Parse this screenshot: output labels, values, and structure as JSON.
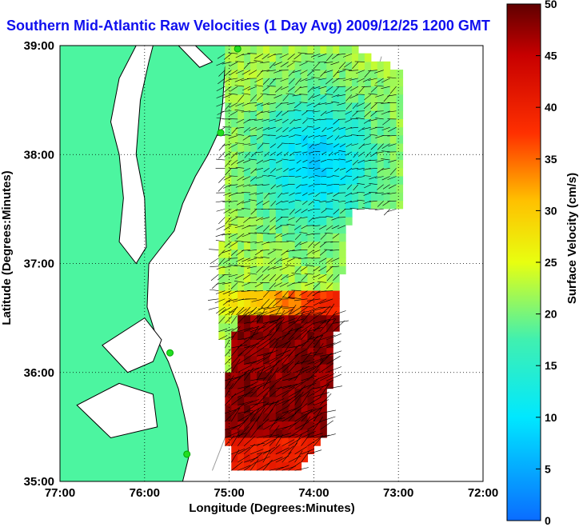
{
  "title": "Southern Mid-Atlantic Raw Velocities (1 Day Avg) 2009/12/25 1200 GMT",
  "map": {
    "xlabel": "Longitude (Degrees:Minutes)",
    "ylabel": "Latitude (Degrees:Minutes)",
    "lon_range": [
      -77,
      -72
    ],
    "lat_range": [
      35,
      39
    ],
    "x_ticks": [
      {
        "value": -77,
        "label": "77:00"
      },
      {
        "value": -76,
        "label": "76:00"
      },
      {
        "value": -75,
        "label": "75:00"
      },
      {
        "value": -74,
        "label": "74:00"
      },
      {
        "value": -73,
        "label": "73:00"
      },
      {
        "value": -72,
        "label": "72:00"
      }
    ],
    "y_ticks": [
      {
        "value": 39,
        "label": "39:00"
      },
      {
        "value": 38,
        "label": "38:00"
      },
      {
        "value": 37,
        "label": "37:00"
      },
      {
        "value": 36,
        "label": "36:00"
      },
      {
        "value": 35,
        "label": "35:00"
      }
    ],
    "land_color": "#4cf5a0",
    "grid": "dotted"
  },
  "colorbar": {
    "label": "Surface Velocity (cm/s)",
    "min": 0,
    "max": 50,
    "ticks": [
      "0",
      "5",
      "10",
      "15",
      "20",
      "25",
      "30",
      "35",
      "40",
      "45",
      "50"
    ]
  },
  "stations": [
    {
      "lon": -74.9,
      "lat": 38.97
    },
    {
      "lon": -75.1,
      "lat": 38.2
    },
    {
      "lon": -75.7,
      "lat": 36.18
    },
    {
      "lon": -75.5,
      "lat": 35.25
    }
  ]
}
